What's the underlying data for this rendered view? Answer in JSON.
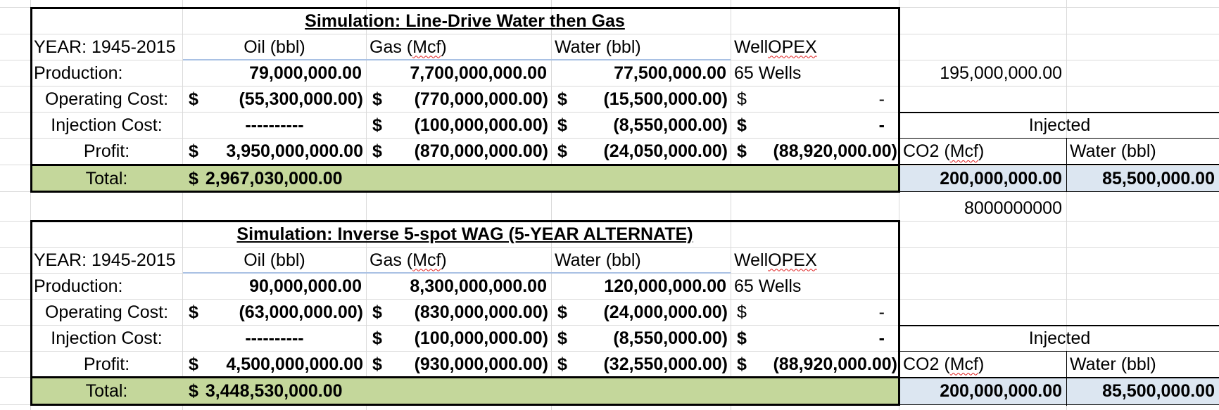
{
  "sheet_colors": {
    "total_fill": "#c4d79b",
    "injected_fill": "#dce6f1",
    "gridline": "#d9d9d9"
  },
  "tables": [
    {
      "title": "Simulation: Line-Drive Water then Gas",
      "year_label": "YEAR: 1945-2015",
      "columns": {
        "oil": "Oil (bbl)",
        "gas_pre": "Gas (",
        "gas_sq": "Mcf",
        "gas_post": ")",
        "water": "Water (bbl)",
        "opex_pre": "Well ",
        "opex_sq": "OPEX"
      },
      "production": {
        "label": "Production:",
        "oil": "79,000,000.00",
        "gas": "7,700,000,000.00",
        "water": "77,500,000.00",
        "wells": "65 Wells"
      },
      "operating_cost": {
        "label": "Operating Cost:",
        "oil": "(55,300,000.00)",
        "gas": "(770,000,000.00)",
        "water": "(15,500,000.00)",
        "opex": "-"
      },
      "injection_cost": {
        "label": "Injection Cost:",
        "oil": "----------",
        "gas": "(100,000,000.00)",
        "water": "(8,550,000.00)",
        "opex": "-"
      },
      "profit": {
        "label": "Profit:",
        "oil": "3,950,000,000.00",
        "gas": "(870,000,000.00)",
        "water": "(24,050,000.00)",
        "opex": "(88,920,000.00)"
      },
      "total": {
        "label": "Total:",
        "value": "2,967,030,000.00"
      },
      "injected": {
        "header": "Injected",
        "co2_pre": "CO2 (",
        "co2_sq": "Mcf",
        "co2_post": ")",
        "water_label": "Water (bbl)",
        "co2": "200,000,000.00",
        "water": "85,500,000.00"
      }
    },
    {
      "title": "Simulation: Inverse 5-spot WAG (5-YEAR ALTERNATE)",
      "year_label": "YEAR: 1945-2015",
      "columns": {
        "oil": "Oil (bbl)",
        "gas_pre": "Gas (",
        "gas_sq": "Mcf",
        "gas_post": ")",
        "water": "Water (bbl)",
        "opex_pre": "Well ",
        "opex_sq": "OPEX"
      },
      "production": {
        "label": "Production:",
        "oil": "90,000,000.00",
        "gas": "8,300,000,000.00",
        "water": "120,000,000.00",
        "wells": "65 Wells"
      },
      "operating_cost": {
        "label": "Operating Cost:",
        "oil": "(63,000,000.00)",
        "gas": "(830,000,000.00)",
        "water": "(24,000,000.00)",
        "opex": "-"
      },
      "injection_cost": {
        "label": "Injection Cost:",
        "oil": "----------",
        "gas": "(100,000,000.00)",
        "water": "(8,550,000.00)",
        "opex": "-"
      },
      "profit": {
        "label": "Profit:",
        "oil": "4,500,000,000.00",
        "gas": "(930,000,000.00)",
        "water": "(32,550,000.00)",
        "opex": "(88,920,000.00)"
      },
      "total": {
        "label": "Total:",
        "value": "3,448,530,000.00"
      },
      "injected": {
        "header": "Injected",
        "co2_pre": "CO2 (",
        "co2_sq": "Mcf",
        "co2_post": ")",
        "water_label": "Water (bbl)",
        "co2": "200,000,000.00",
        "water": "85,500,000.00"
      }
    }
  ],
  "side_values": {
    "top": "195,000,000.00",
    "middle": "8000000000"
  },
  "currency": "$"
}
